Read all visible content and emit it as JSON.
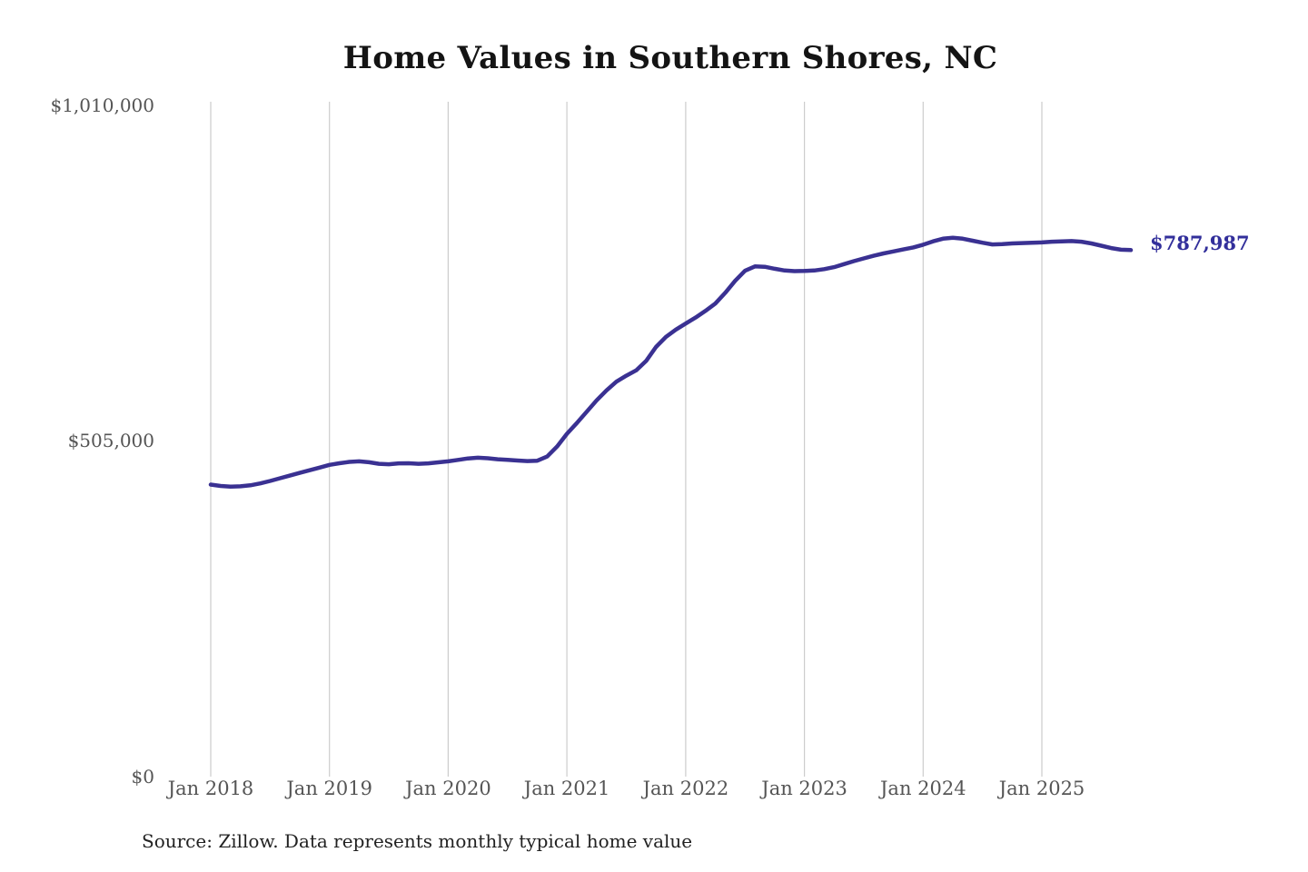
{
  "source_note": "Source: Zillow. Data represents monthly typical home value",
  "colors": {
    "line": "#3a3192",
    "value_label": "#322f9b",
    "grid": "#cccccc",
    "title_text": "#141414",
    "axis_text": "#555555",
    "source_text": "#222222",
    "background": "#ffffff"
  },
  "chart_data": {
    "type": "line",
    "title": "Home Values in Southern Shores, NC",
    "xlabel": "",
    "ylabel": "",
    "ylim": [
      0,
      1010000
    ],
    "grid": "vertical-only",
    "x_tick_labels": [
      "Jan 2018",
      "Jan 2019",
      "Jan 2020",
      "Jan 2021",
      "Jan 2022",
      "Jan 2023",
      "Jan 2024",
      "Jan 2025"
    ],
    "y_tick_labels": [
      "$0",
      "$505,000",
      "$1,010,000"
    ],
    "x_start": "Jan 2018",
    "x_end": "Oct 2025",
    "end_label": "$787,987",
    "final_value": 787987,
    "series": [
      {
        "name": "Monthly typical home value",
        "frequency": "monthly",
        "monthly_values": [
          437000,
          435000,
          434000,
          434500,
          436000,
          438800,
          442500,
          446500,
          450500,
          454500,
          458500,
          462500,
          466500,
          469000,
          471000,
          471800,
          470500,
          468200,
          467500,
          468800,
          469000,
          468200,
          468800,
          470300,
          471800,
          474000,
          476200,
          477300,
          476500,
          475000,
          474000,
          473000,
          472200,
          472800,
          479000,
          494000,
          513000,
          529000,
          546000,
          563000,
          578000,
          591000,
          600000,
          608000,
          622000,
          643000,
          658000,
          669000,
          678000,
          687000,
          697000,
          708000,
          724000,
          742000,
          757000,
          763500,
          763000,
          760000,
          757500,
          756500,
          756800,
          757500,
          759500,
          762500,
          767000,
          771500,
          775500,
          779500,
          783000,
          786000,
          789000,
          792000,
          796000,
          801000,
          805000,
          806500,
          805000,
          802000,
          799000,
          796500,
          797000,
          798000,
          798500,
          799000,
          799500,
          800500,
          801000,
          801500,
          800500,
          798000,
          794500,
          791000,
          788500,
          787987
        ]
      }
    ]
  }
}
